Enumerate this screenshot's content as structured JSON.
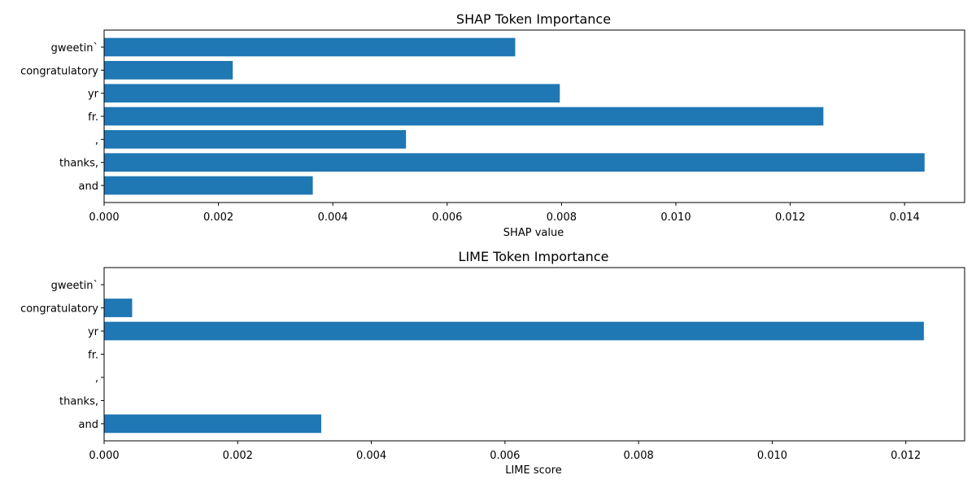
{
  "chart_data": [
    {
      "type": "bar",
      "orientation": "horizontal",
      "title": "SHAP Token Importance",
      "xlabel": "SHAP value",
      "ylabel": "",
      "categories": [
        "gweetin`",
        "congratulatory",
        "yr",
        "fr.",
        ",",
        "thanks,",
        "and"
      ],
      "values": [
        0.00719,
        0.00225,
        0.00797,
        0.01258,
        0.00528,
        0.01435,
        0.00365
      ],
      "xlim": [
        0,
        0.01505
      ],
      "xticks": [
        0,
        0.002,
        0.004,
        0.006,
        0.008,
        0.01,
        0.012,
        0.014
      ],
      "xtick_labels": [
        "0.000",
        "0.002",
        "0.004",
        "0.006",
        "0.008",
        "0.010",
        "0.012",
        "0.014"
      ],
      "grid": false,
      "bar_color": "#1f77b4"
    },
    {
      "type": "bar",
      "orientation": "horizontal",
      "title": "LIME Token Importance",
      "xlabel": "LIME score",
      "ylabel": "",
      "categories": [
        "gweetin`",
        "congratulatory",
        "yr",
        "fr.",
        ",",
        "thanks,",
        "and"
      ],
      "values": [
        0,
        0.00042,
        0.01227,
        0,
        0,
        0,
        0.00325
      ],
      "xlim": [
        0,
        0.01288
      ],
      "xticks": [
        0,
        0.002,
        0.004,
        0.006,
        0.008,
        0.01,
        0.012
      ],
      "xtick_labels": [
        "0.000",
        "0.002",
        "0.004",
        "0.006",
        "0.008",
        "0.010",
        "0.012"
      ],
      "grid": false,
      "bar_color": "#1f77b4"
    }
  ]
}
